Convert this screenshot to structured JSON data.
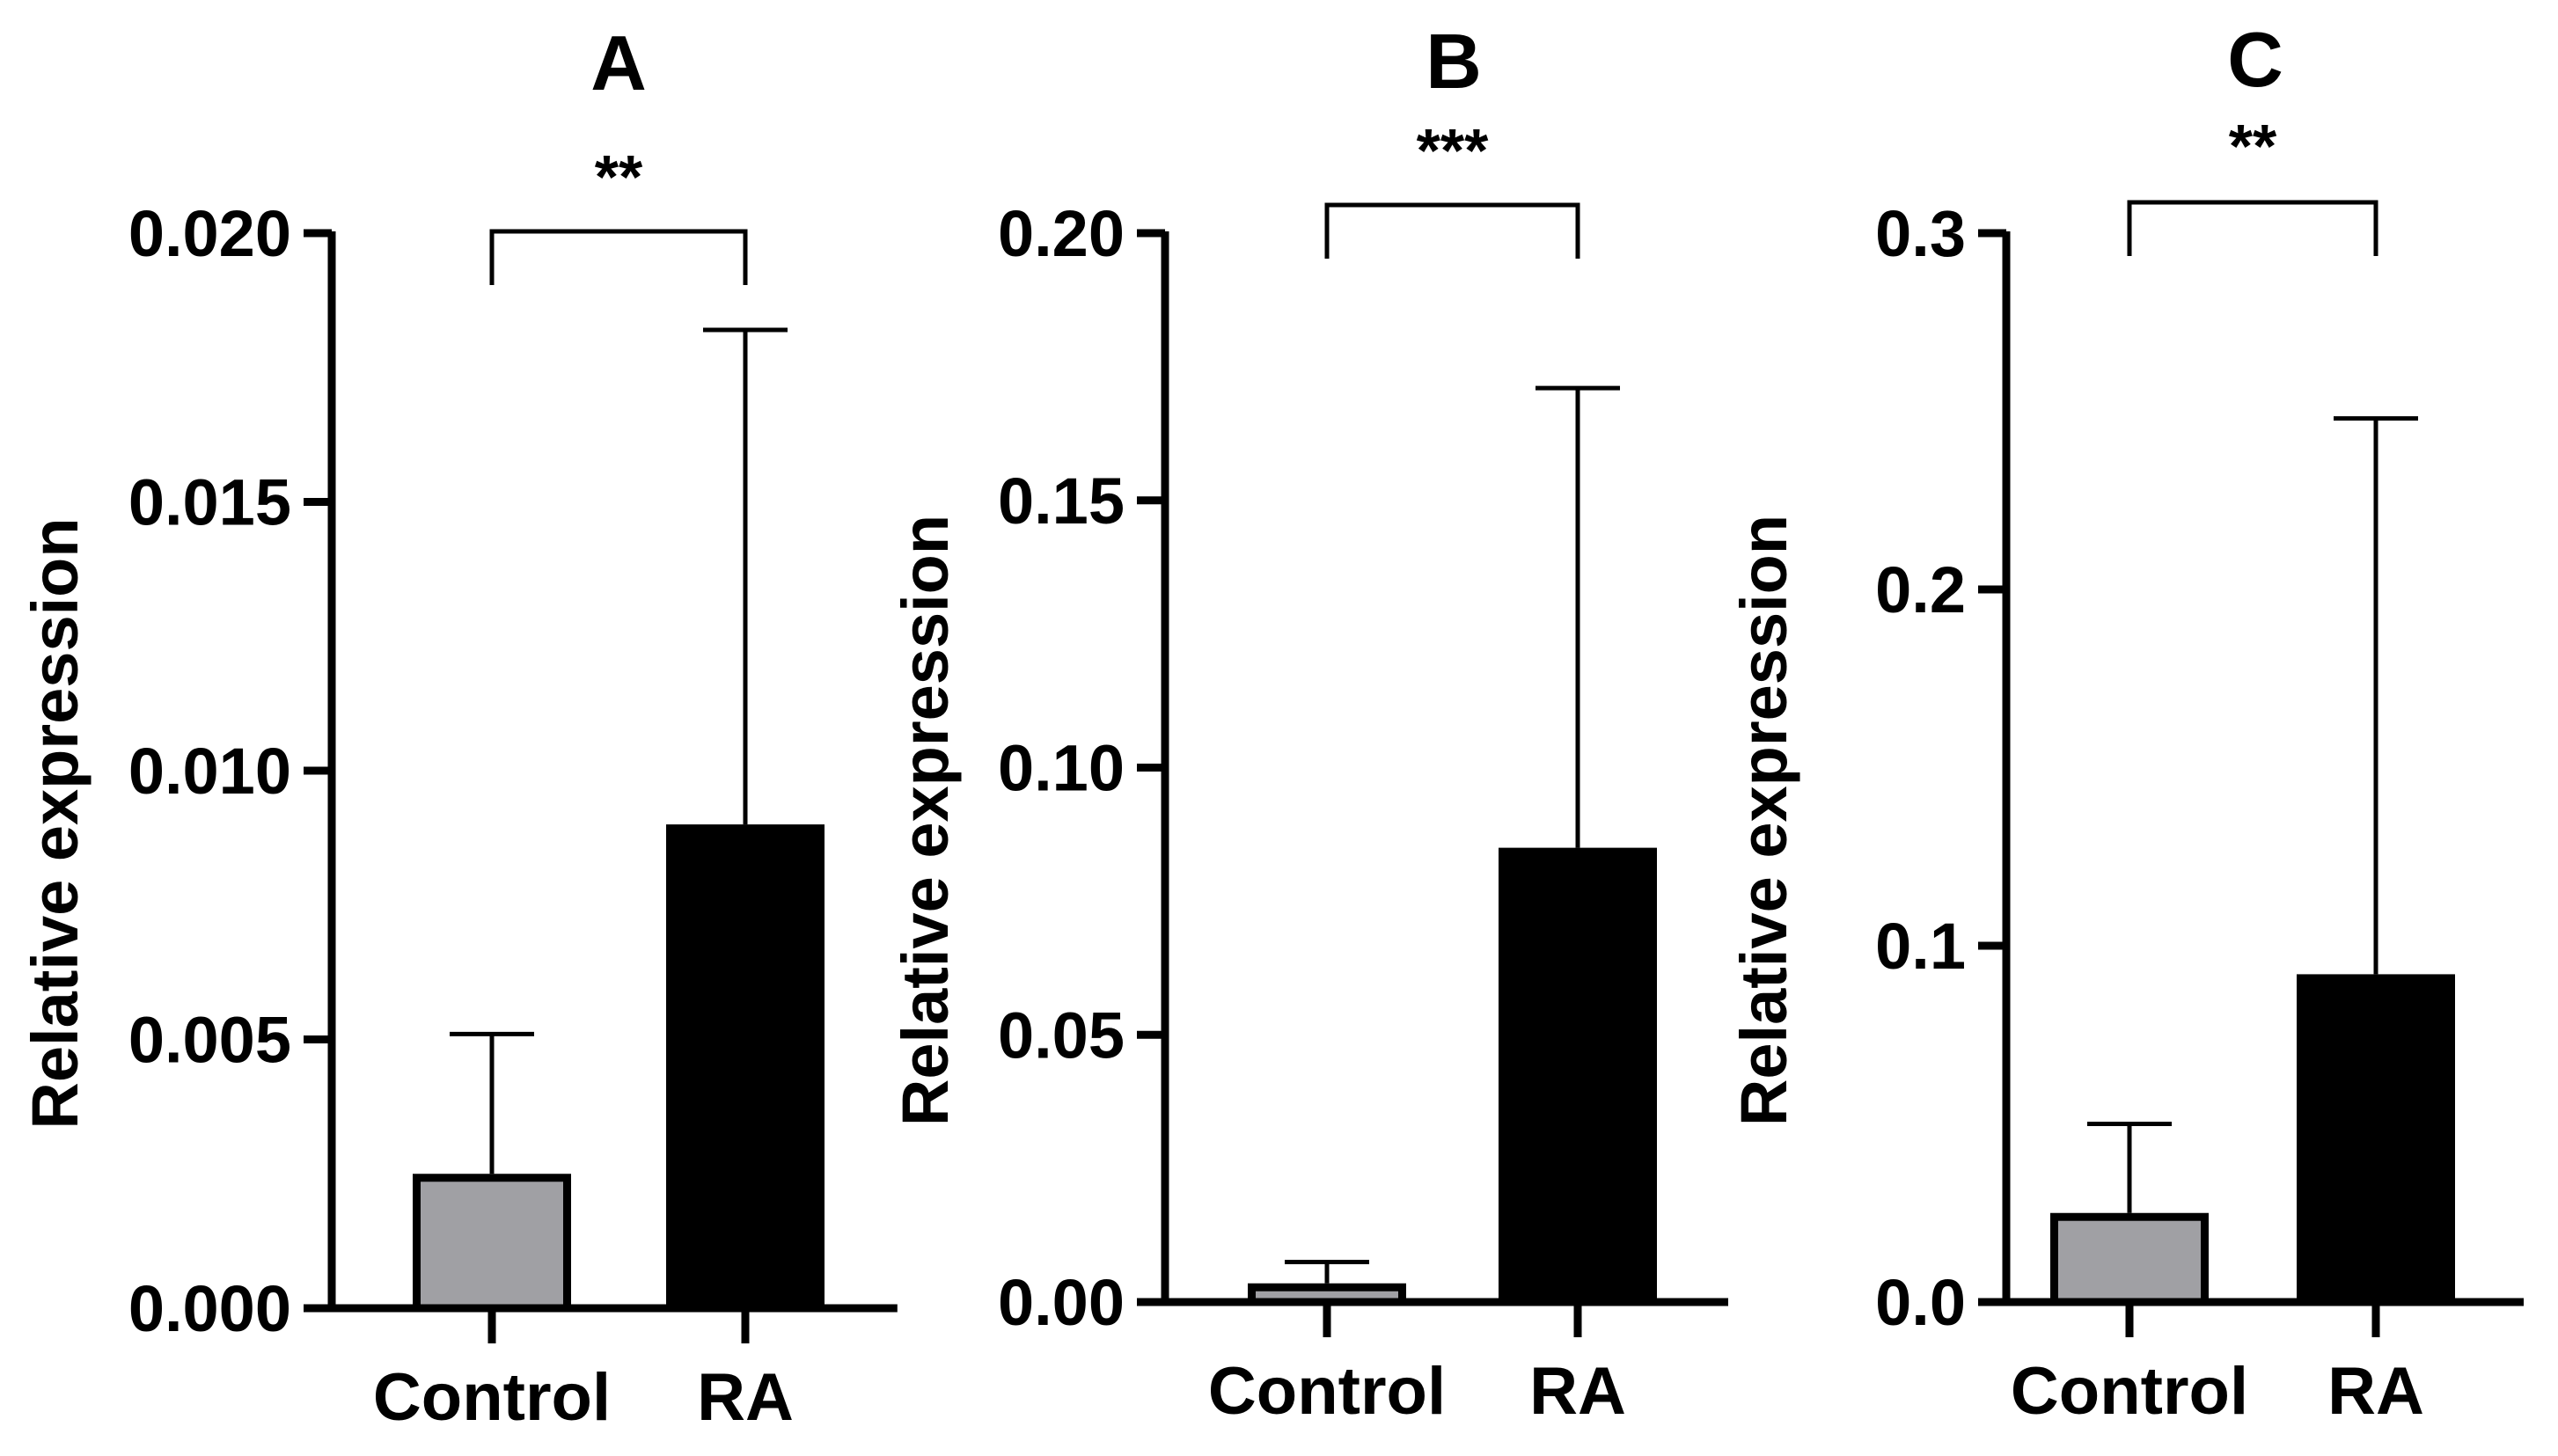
{
  "chart_data": [
    {
      "type": "bar",
      "title": "A",
      "xlabel": "",
      "ylabel": "Relative expression",
      "categories": [
        "Control",
        "RA"
      ],
      "values": [
        0.0025,
        0.009
      ],
      "error_upper": [
        0.0051,
        0.0182
      ],
      "bar_colors": [
        "#a0a0a4",
        "#000000"
      ],
      "ylim": [
        0,
        0.02
      ],
      "yticks": [
        0,
        0.005,
        0.01,
        0.015,
        0.02
      ],
      "ytick_labels": [
        "0.000",
        "0.005",
        "0.010",
        "0.015",
        "0.020"
      ],
      "grid": false,
      "significance": {
        "pair": [
          "Control",
          "RA"
        ],
        "label": "**"
      }
    },
    {
      "type": "bar",
      "title": "B",
      "xlabel": "",
      "ylabel": "Relative expression",
      "categories": [
        "Control",
        "RA"
      ],
      "values": [
        0.0035,
        0.085
      ],
      "error_upper": [
        0.0075,
        0.171
      ],
      "bar_colors": [
        "#a0a0a4",
        "#000000"
      ],
      "ylim": [
        0,
        0.2
      ],
      "yticks": [
        0,
        0.05,
        0.1,
        0.15,
        0.2
      ],
      "ytick_labels": [
        "0.00",
        "0.05",
        "0.10",
        "0.15",
        "0.20"
      ],
      "grid": false,
      "significance": {
        "pair": [
          "Control",
          "RA"
        ],
        "label": "***"
      }
    },
    {
      "type": "bar",
      "title": "C",
      "xlabel": "",
      "ylabel": "Relative expression",
      "categories": [
        "Control",
        "RA"
      ],
      "values": [
        0.025,
        0.092
      ],
      "error_upper": [
        0.05,
        0.248
      ],
      "bar_colors": [
        "#a0a0a4",
        "#000000"
      ],
      "ylim": [
        0,
        0.3
      ],
      "yticks": [
        0,
        0.1,
        0.2,
        0.3
      ],
      "ytick_labels": [
        "0.0",
        "0.1",
        "0.2",
        "0.3"
      ],
      "grid": false,
      "significance": {
        "pair": [
          "Control",
          "RA"
        ],
        "label": "**"
      }
    }
  ]
}
